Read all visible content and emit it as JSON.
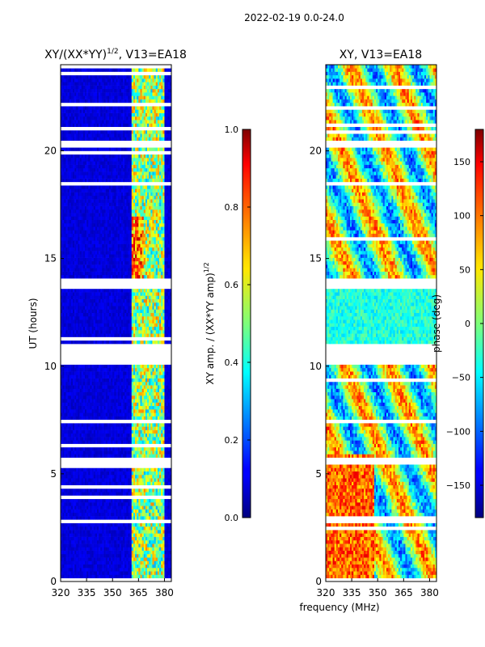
{
  "figure": {
    "suptitle": "2022-02-19 0.0-24.0",
    "xlabel_shared": "frequency (MHz)"
  },
  "chart_data": [
    {
      "type": "heatmap",
      "title_main": "XY/(XX*YY)",
      "title_sup": "1/2",
      "title_rest": ", V13=EA18",
      "xlabel": "",
      "ylabel": "UT (hours)",
      "xlim": [
        320,
        384
      ],
      "ylim": [
        0,
        24
      ],
      "xticks": [
        320,
        335,
        350,
        365,
        380
      ],
      "yticks": [
        0,
        5,
        10,
        15,
        20
      ],
      "colorbar": {
        "label_main": "XY amp. / (XX*YY amp)",
        "label_sup": "1/2",
        "range": [
          0.0,
          1.0
        ],
        "ticks": [
          "0.0",
          "0.2",
          "0.4",
          "0.6",
          "0.8",
          "1.0"
        ],
        "tick_values": [
          0.0,
          0.2,
          0.4,
          0.6,
          0.8,
          1.0
        ]
      },
      "blank_hours": [
        [
          10.1,
          11.1
        ],
        [
          13.6,
          14.1
        ],
        [
          20.1,
          20.5
        ],
        [
          5.5,
          5.8
        ],
        [
          7.3,
          7.55
        ]
      ],
      "bright_channel_range_mhz": [
        361,
        380
      ]
    },
    {
      "type": "heatmap",
      "title": "XY, V13=EA18",
      "xlabel": "",
      "ylabel": "",
      "xlim": [
        320,
        384
      ],
      "ylim": [
        0,
        24
      ],
      "xticks": [
        320,
        335,
        350,
        365,
        380
      ],
      "yticks": [
        0,
        5,
        10,
        15,
        20
      ],
      "colorbar": {
        "label": "phase (deg)",
        "range": [
          -180,
          180
        ],
        "ticks": [
          "150",
          "100",
          "50",
          "0",
          "−50",
          "−100",
          "−150"
        ],
        "tick_values": [
          150,
          100,
          50,
          0,
          -50,
          -100,
          -150
        ]
      },
      "blank_hours": [
        [
          10.1,
          11.1
        ],
        [
          13.6,
          14.1
        ],
        [
          20.1,
          20.5
        ],
        [
          5.5,
          5.8
        ],
        [
          7.3,
          7.55
        ]
      ]
    }
  ]
}
